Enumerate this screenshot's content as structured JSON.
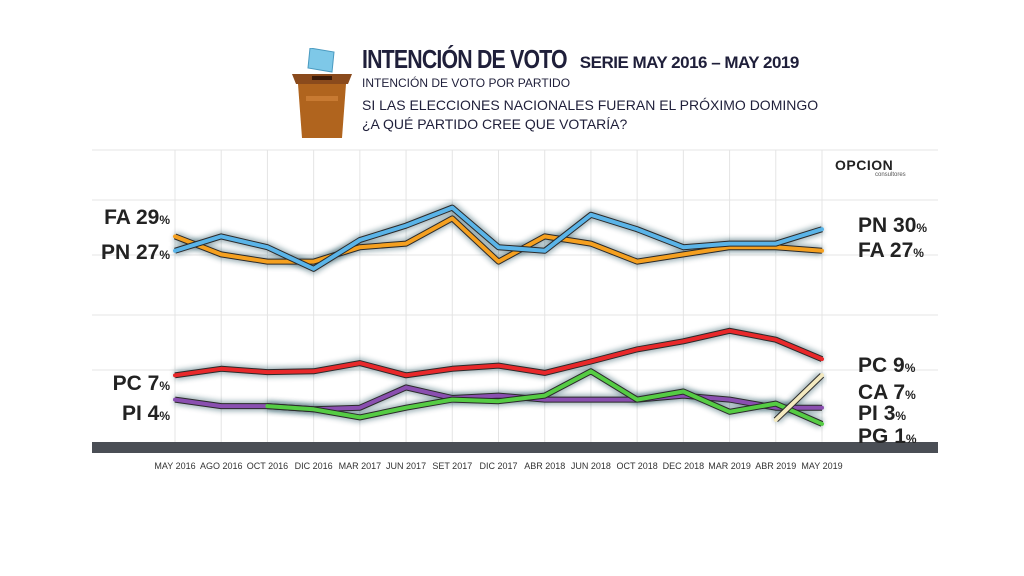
{
  "header": {
    "title": "INTENCIÓN DE VOTO",
    "serie": "SERIE MAY 2016 – MAY 2019",
    "subtitle": "INTENCIÓN DE VOTO POR PARTIDO",
    "question_line1": "SI LAS ELECCIONES NACIONALES FUERAN EL PRÓXIMO DOMINGO",
    "question_line2": "¿A QUÉ PARTIDO CREE QUE VOTARÍA?"
  },
  "logo": {
    "main": "OPCION",
    "sub": "consultores"
  },
  "colors": {
    "PN": "#5ab4e8",
    "FA": "#f5a020",
    "PC": "#e8282a",
    "PI": "#8a4fb0",
    "PG": "#55cc44",
    "CA": "#f3e9bf"
  },
  "chart_data": {
    "type": "line",
    "categories": [
      "MAY 2016",
      "AGO 2016",
      "OCT 2016",
      "DIC 2016",
      "MAR 2017",
      "JUN 2017",
      "SET 2017",
      "DIC 2017",
      "ABR 2018",
      "JUN 2018",
      "OCT 2018",
      "DEC 2018",
      "MAR 2019",
      "ABR 2019",
      "MAY 2019"
    ],
    "series": [
      {
        "name": "PN",
        "start_label": "PN",
        "start_value": "27",
        "end_label": "PN",
        "end_value": "30",
        "values": [
          27,
          29,
          27.5,
          24.5,
          28.5,
          30.5,
          33,
          27.5,
          27,
          32,
          30,
          27.5,
          28,
          28,
          30
        ]
      },
      {
        "name": "FA",
        "start_label": "FA",
        "start_value": "29",
        "end_label": "FA",
        "end_value": "27",
        "values": [
          29,
          26.5,
          25.5,
          25.5,
          27.5,
          28,
          31.5,
          25.5,
          29,
          28,
          25.5,
          26.5,
          27.5,
          27.5,
          27
        ]
      },
      {
        "name": "PC",
        "start_label": "PC",
        "start_value": "7",
        "end_label": "PC",
        "end_value": "9",
        "values": [
          7,
          7.8,
          7.4,
          7.5,
          8.5,
          7,
          7.8,
          8.2,
          7.3,
          8.7,
          10.2,
          11.2,
          12.5,
          11.4,
          9
        ]
      },
      {
        "name": "PI",
        "start_label": "PI",
        "start_value": "4",
        "end_label": "PI",
        "end_value": "3",
        "values": [
          4,
          3.2,
          3.2,
          2.8,
          3,
          5.5,
          4.2,
          4.5,
          4,
          4,
          4,
          4.5,
          4,
          3,
          3
        ]
      },
      {
        "name": "PG",
        "start_label": "",
        "start_value": "",
        "end_label": "PG",
        "end_value": "1",
        "values": [
          null,
          null,
          3.2,
          2.8,
          1.8,
          3,
          4,
          3.8,
          4.5,
          7.5,
          4,
          5,
          2.5,
          3.5,
          1
        ]
      },
      {
        "name": "CA",
        "start_label": "",
        "start_value": "",
        "end_label": "CA",
        "end_value": "7",
        "values": [
          null,
          null,
          null,
          null,
          null,
          null,
          null,
          null,
          null,
          null,
          null,
          null,
          null,
          1.5,
          7
        ]
      }
    ],
    "percent_sign": "%",
    "ylim": [
      0,
      40
    ],
    "grid": true
  }
}
